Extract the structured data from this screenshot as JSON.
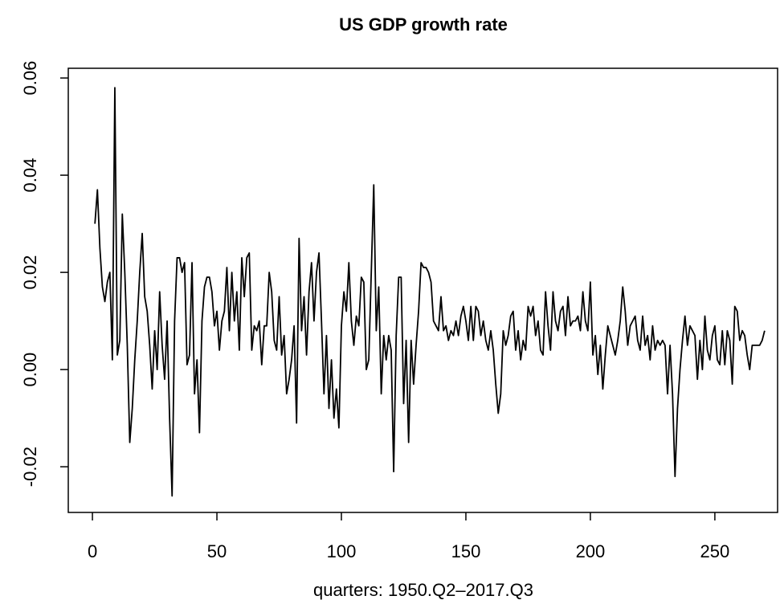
{
  "chart_data": {
    "type": "line",
    "title": "US GDP growth rate",
    "x_label": "quarters: 1950.Q2–2017.Q3",
    "color": "#000000",
    "x": [
      1,
      2,
      3,
      4,
      5,
      6,
      7,
      8,
      9,
      10,
      11,
      12,
      13,
      14,
      15,
      16,
      17,
      18,
      19,
      20,
      21,
      22,
      23,
      24,
      25,
      26,
      27,
      28,
      29,
      30,
      31,
      32,
      33,
      34,
      35,
      36,
      37,
      38,
      39,
      40,
      41,
      42,
      43,
      44,
      45,
      46,
      47,
      48,
      49,
      50,
      51,
      52,
      53,
      54,
      55,
      56,
      57,
      58,
      59,
      60,
      61,
      62,
      63,
      64,
      65,
      66,
      67,
      68,
      69,
      70,
      71,
      72,
      73,
      74,
      75,
      76,
      77,
      78,
      79,
      80,
      81,
      82,
      83,
      84,
      85,
      86,
      87,
      88,
      89,
      90,
      91,
      92,
      93,
      94,
      95,
      96,
      97,
      98,
      99,
      100,
      101,
      102,
      103,
      104,
      105,
      106,
      107,
      108,
      109,
      110,
      111,
      112,
      113,
      114,
      115,
      116,
      117,
      118,
      119,
      120,
      121,
      122,
      123,
      124,
      125,
      126,
      127,
      128,
      129,
      130,
      131,
      132,
      133,
      134,
      135,
      136,
      137,
      138,
      139,
      140,
      141,
      142,
      143,
      144,
      145,
      146,
      147,
      148,
      149,
      150,
      151,
      152,
      153,
      154,
      155,
      156,
      157,
      158,
      159,
      160,
      161,
      162,
      163,
      164,
      165,
      166,
      167,
      168,
      169,
      170,
      171,
      172,
      173,
      174,
      175,
      176,
      177,
      178,
      179,
      180,
      181,
      182,
      183,
      184,
      185,
      186,
      187,
      188,
      189,
      190,
      191,
      192,
      193,
      194,
      195,
      196,
      197,
      198,
      199,
      200,
      201,
      202,
      203,
      204,
      205,
      206,
      207,
      208,
      209,
      210,
      211,
      212,
      213,
      214,
      215,
      216,
      217,
      218,
      219,
      220,
      221,
      222,
      223,
      224,
      225,
      226,
      227,
      228,
      229,
      230,
      231,
      232,
      233,
      234,
      235,
      236,
      237,
      238,
      239,
      240,
      241,
      242,
      243,
      244,
      245,
      246,
      247,
      248,
      249,
      250,
      251,
      252,
      253,
      254,
      255,
      256,
      257,
      258,
      259,
      260,
      261,
      262,
      263,
      264,
      265,
      266,
      267,
      268,
      269,
      270
    ],
    "values": [
      0.03,
      0.037,
      0.025,
      0.017,
      0.014,
      0.018,
      0.02,
      0.002,
      0.058,
      0.003,
      0.006,
      0.032,
      0.02,
      0.005,
      -0.015,
      -0.008,
      0.002,
      0.01,
      0.02,
      0.028,
      0.015,
      0.012,
      0.005,
      -0.004,
      0.008,
      0.0,
      0.016,
      0.005,
      -0.002,
      0.01,
      -0.01,
      -0.026,
      0.01,
      0.023,
      0.023,
      0.02,
      0.022,
      0.001,
      0.003,
      0.022,
      -0.005,
      0.002,
      -0.013,
      0.01,
      0.017,
      0.019,
      0.019,
      0.016,
      0.009,
      0.012,
      0.004,
      0.01,
      0.012,
      0.021,
      0.008,
      0.02,
      0.01,
      0.016,
      0.004,
      0.023,
      0.015,
      0.023,
      0.024,
      0.004,
      0.009,
      0.008,
      0.01,
      0.001,
      0.009,
      0.009,
      0.02,
      0.016,
      0.006,
      0.004,
      0.015,
      0.003,
      0.007,
      -0.005,
      -0.002,
      0.002,
      0.009,
      -0.011,
      0.027,
      0.008,
      0.015,
      0.003,
      0.016,
      0.022,
      0.01,
      0.02,
      0.024,
      0.01,
      -0.005,
      0.007,
      -0.008,
      0.002,
      -0.01,
      -0.004,
      -0.012,
      0.009,
      0.016,
      0.012,
      0.022,
      0.01,
      0.005,
      0.011,
      0.009,
      0.019,
      0.018,
      0.0,
      0.002,
      0.02,
      0.038,
      0.008,
      0.017,
      -0.005,
      0.007,
      0.002,
      0.007,
      0.004,
      -0.021,
      0.007,
      0.019,
      0.019,
      -0.007,
      0.006,
      -0.015,
      0.006,
      -0.003,
      0.005,
      0.012,
      0.022,
      0.021,
      0.021,
      0.02,
      0.018,
      0.01,
      0.009,
      0.008,
      0.015,
      0.008,
      0.009,
      0.006,
      0.008,
      0.007,
      0.01,
      0.007,
      0.011,
      0.013,
      0.01,
      0.006,
      0.013,
      0.006,
      0.013,
      0.012,
      0.007,
      0.01,
      0.006,
      0.004,
      0.008,
      0.004,
      -0.003,
      -0.009,
      -0.005,
      0.008,
      0.005,
      0.007,
      0.011,
      0.012,
      0.004,
      0.008,
      0.002,
      0.006,
      0.004,
      0.013,
      0.011,
      0.013,
      0.007,
      0.01,
      0.004,
      0.003,
      0.016,
      0.009,
      0.004,
      0.016,
      0.01,
      0.008,
      0.012,
      0.013,
      0.007,
      0.015,
      0.009,
      0.01,
      0.01,
      0.011,
      0.008,
      0.016,
      0.01,
      0.008,
      0.018,
      0.003,
      0.007,
      -0.001,
      0.005,
      -0.004,
      0.003,
      0.009,
      0.007,
      0.005,
      0.003,
      0.006,
      0.01,
      0.017,
      0.012,
      0.005,
      0.009,
      0.01,
      0.011,
      0.006,
      0.004,
      0.011,
      0.005,
      0.007,
      0.002,
      0.009,
      0.004,
      0.006,
      0.005,
      0.006,
      0.005,
      -0.005,
      0.005,
      -0.005,
      -0.022,
      -0.008,
      0.0,
      0.006,
      0.011,
      0.005,
      0.009,
      0.008,
      0.007,
      -0.002,
      0.006,
      0.0,
      0.011,
      0.004,
      0.002,
      0.007,
      0.009,
      0.002,
      0.001,
      0.008,
      0.001,
      0.008,
      0.006,
      -0.003,
      0.013,
      0.012,
      0.006,
      0.008,
      0.007,
      0.003,
      0.0,
      0.005,
      0.005,
      0.005,
      0.005,
      0.006,
      0.008
    ],
    "xlim": [
      -9.7,
      275.2
    ],
    "xticks": [
      0,
      50,
      100,
      150,
      200,
      250
    ],
    "ylim": [
      -0.0294,
      0.062
    ],
    "yticks": [
      -0.02,
      {
        "value": 0,
        "label": "0.00"
      },
      0.02,
      0.04,
      0.06
    ]
  }
}
